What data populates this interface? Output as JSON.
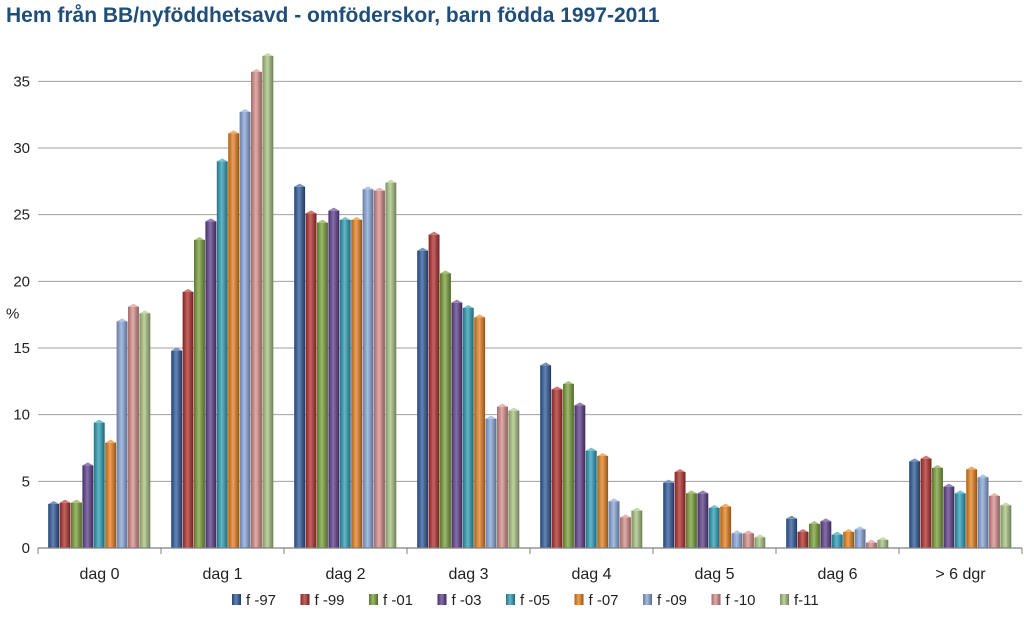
{
  "chart_data": {
    "type": "bar",
    "title": "Hem från BB/nyföddhetsavd - omföderskor, barn födda 1997-2011",
    "ylabel": "%",
    "xlabel": "",
    "ylim": [
      0,
      37.5
    ],
    "yticks": [
      0,
      5,
      10,
      15,
      20,
      25,
      30,
      35
    ],
    "grid": true,
    "legend_position": "bottom",
    "categories": [
      "dag 0",
      "dag 1",
      "dag 2",
      "dag 3",
      "dag 4",
      "dag 5",
      "dag 6",
      "> 6 dgr"
    ],
    "series": [
      {
        "name": "f -97",
        "color": "#2e5a9a",
        "values": [
          3.3,
          14.8,
          27.1,
          22.3,
          13.7,
          4.9,
          2.2,
          6.5
        ]
      },
      {
        "name": "f -99",
        "color": "#b0302e",
        "values": [
          3.4,
          19.2,
          25.1,
          23.5,
          11.9,
          5.7,
          1.2,
          6.7
        ]
      },
      {
        "name": "f -01",
        "color": "#7aa03a",
        "values": [
          3.4,
          23.1,
          24.4,
          20.6,
          12.3,
          4.1,
          1.8,
          6.0
        ]
      },
      {
        "name": "f -03",
        "color": "#5e3f8c",
        "values": [
          6.2,
          24.5,
          25.3,
          18.4,
          10.7,
          4.1,
          2.0,
          4.6
        ]
      },
      {
        "name": "f -05",
        "color": "#2c9fb5",
        "values": [
          9.4,
          29.0,
          24.6,
          18.0,
          7.3,
          3.0,
          1.0,
          4.1
        ]
      },
      {
        "name": "f -07",
        "color": "#e6811f",
        "values": [
          7.9,
          31.1,
          24.6,
          17.3,
          6.9,
          3.1,
          1.2,
          5.9
        ]
      },
      {
        "name": "f -09",
        "color": "#8aa6d8",
        "values": [
          17.0,
          32.7,
          26.9,
          9.7,
          3.5,
          1.1,
          1.4,
          5.3
        ]
      },
      {
        "name": "f -10",
        "color": "#d88f8c",
        "values": [
          18.1,
          35.7,
          26.8,
          10.6,
          2.3,
          1.1,
          0.4,
          3.9
        ]
      },
      {
        "name": "f-11",
        "color": "#a9c483",
        "values": [
          17.6,
          36.9,
          27.4,
          10.3,
          2.8,
          0.8,
          0.6,
          3.2
        ]
      }
    ]
  }
}
